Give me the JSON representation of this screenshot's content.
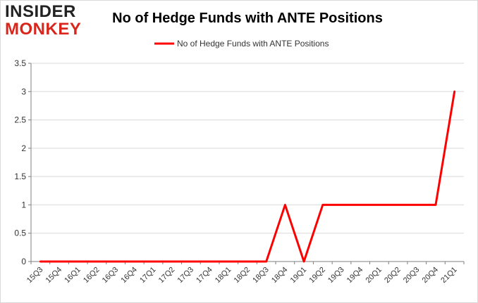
{
  "logo": {
    "line1": "INSIDER",
    "line2": "MONKEY"
  },
  "colors": {
    "series": "#ff0000",
    "axis": "#7f7f7f",
    "grid": "#d9d9d9",
    "logo_dark": "#222222",
    "logo_red": "#d9261c"
  },
  "chart_data": {
    "type": "line",
    "title": "No of Hedge Funds with ANTE Positions",
    "xlabel": "",
    "ylabel": "",
    "ylim": [
      0,
      3.5
    ],
    "yticks": [
      "0",
      "0.5",
      "1",
      "1.5",
      "2",
      "2.5",
      "3",
      "3.5"
    ],
    "grid": true,
    "legend": "top-center",
    "categories": [
      "15Q3",
      "15Q4",
      "16Q1",
      "16Q2",
      "16Q3",
      "16Q4",
      "17Q1",
      "17Q2",
      "17Q3",
      "17Q4",
      "18Q1",
      "18Q2",
      "18Q3",
      "18Q4",
      "19Q1",
      "19Q2",
      "19Q3",
      "19Q4",
      "20Q1",
      "20Q2",
      "20Q3",
      "20Q4",
      "21Q1"
    ],
    "series": [
      {
        "name": "No of Hedge Funds with ANTE Positions",
        "values": [
          0,
          0,
          0,
          0,
          0,
          0,
          0,
          0,
          0,
          0,
          0,
          0,
          0,
          1,
          0,
          1,
          1,
          1,
          1,
          1,
          1,
          1,
          3
        ]
      }
    ]
  }
}
